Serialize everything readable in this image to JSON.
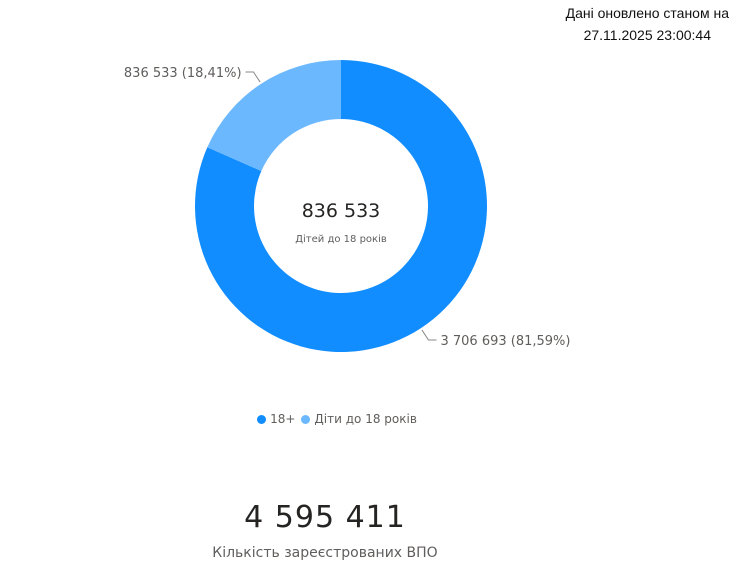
{
  "update_note": {
    "line1": "Дані оновлено станом на",
    "line2": "27.11.2025 23:00:44"
  },
  "center": {
    "value": "836 533",
    "label": "Дітей до 18 років"
  },
  "kpi": {
    "value": "4 595 411",
    "label": "Кількість зареєстрованих ВПО"
  },
  "colors": {
    "adults": "#118DFF",
    "children": "#6CB8FF",
    "leader": "#8a8886",
    "label_text": "#605e5c"
  },
  "chart_data": {
    "type": "pie",
    "donut": true,
    "categories": [
      "18+",
      "Діти до 18 років"
    ],
    "values": [
      3706693,
      836533
    ],
    "data_labels": [
      "3 706 693 (81,59%)",
      "836 533 (18,41%)"
    ],
    "legend": [
      "18+",
      "Діти до 18 років"
    ],
    "legend_position": "bottom"
  }
}
